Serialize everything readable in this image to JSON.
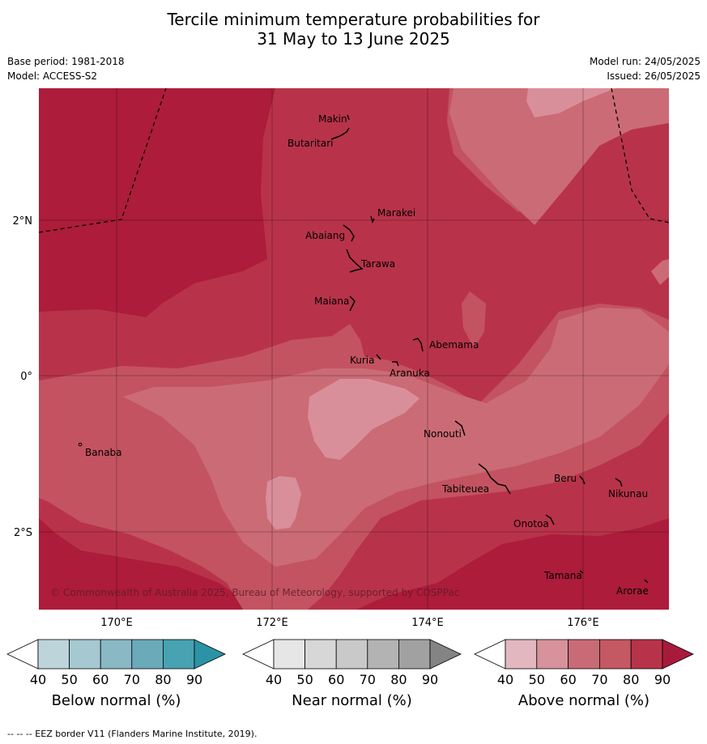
{
  "title_line1": "Tercile minimum temperature probabilities for",
  "title_line2": "31 May to 13 June 2025",
  "base_period": "Base period: 1981-2018",
  "model": "Model: ACCESS-S2",
  "model_run": "Model run: 24/05/2025",
  "issued": "Issued: 26/05/2025",
  "lat_labels": [
    "2°N",
    "0°",
    "2°S"
  ],
  "lon_labels": [
    "170°E",
    "172°E",
    "174°E",
    "176°E"
  ],
  "islands": [
    "Makin",
    "Butaritari",
    "Marakei",
    "Abaiang",
    "Tarawa",
    "Maiana",
    "Abemama",
    "Kuria",
    "Aranuka",
    "Banaba",
    "Nonouti",
    "Tabiteuea",
    "Beru",
    "Nikunau",
    "Onotoa",
    "Tamana",
    "Arorae"
  ],
  "copyright": "© Commonwealth of Australia 2025, Bureau of Meteorology, supported by COSPPac",
  "colorbars": [
    {
      "title": "Below normal (%)",
      "ticks": [
        "40",
        "50",
        "60",
        "70",
        "80",
        "90"
      ],
      "colors": [
        "#ffffff",
        "#bdd4db",
        "#a6c9d1",
        "#8ab9c6",
        "#6aaab9",
        "#47a2b2",
        "#2b93a5"
      ]
    },
    {
      "title": "Near normal (%)",
      "ticks": [
        "40",
        "50",
        "60",
        "70",
        "80",
        "90"
      ],
      "colors": [
        "#ffffff",
        "#e6e6e6",
        "#d7d7d7",
        "#c9c9c9",
        "#b3b3b3",
        "#a1a1a1",
        "#848484"
      ]
    },
    {
      "title": "Above normal (%)",
      "ticks": [
        "40",
        "50",
        "60",
        "70",
        "80",
        "90"
      ],
      "colors": [
        "#ffffff",
        "#e3b7bf",
        "#d8929c",
        "#c96b76",
        "#c45863",
        "#b7334a",
        "#a81a3a"
      ]
    }
  ],
  "footer": "--  --  -- EEZ border V11 (Flanders Marine Institute, 2019).",
  "probability_colors": {
    "above_90": "#ad1c3a",
    "above_80": "#b8334a",
    "above_70": "#c35360",
    "above_60": "#cb6b75",
    "above_50": "#d98f9a"
  }
}
